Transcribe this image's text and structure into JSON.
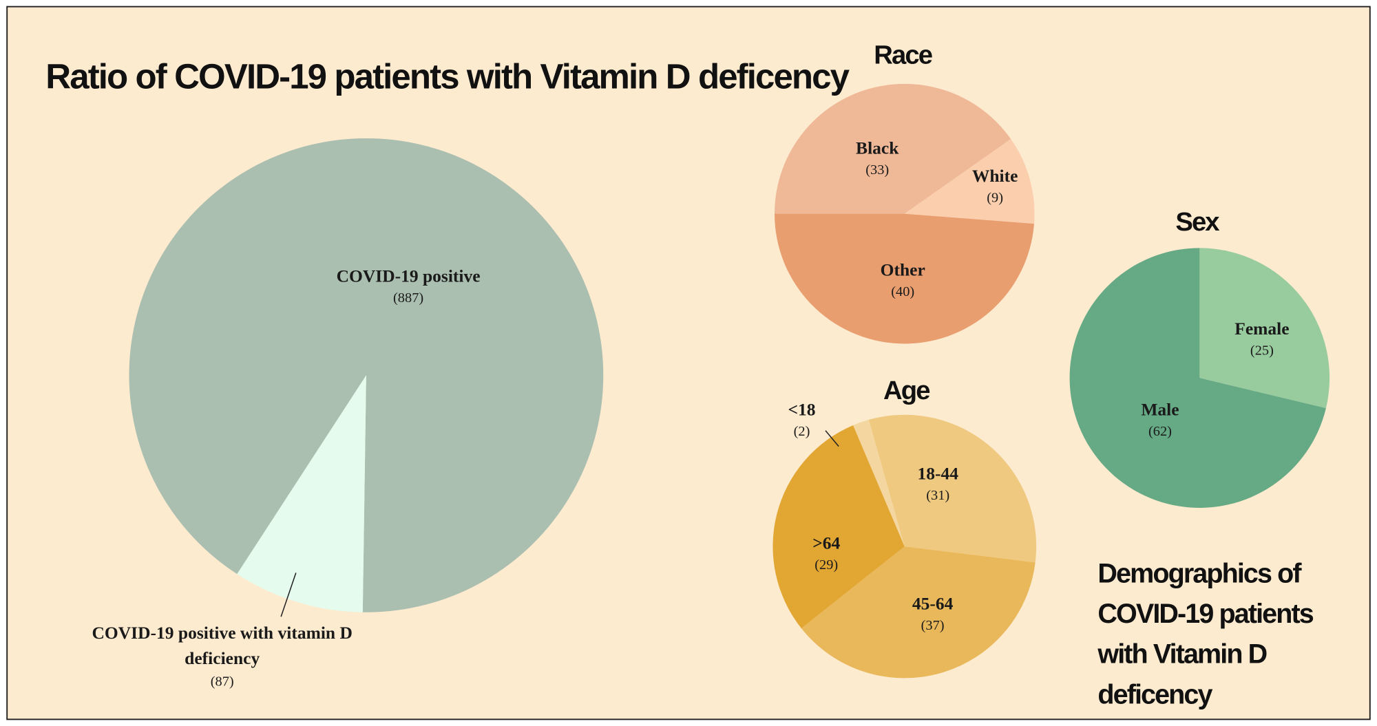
{
  "chart_data": [
    {
      "type": "pie",
      "title": "Ratio of COVID-19 patients with Vitamin D deficency",
      "categories": [
        "COVID-19 positive",
        "COVID-19 positive with vitamin D deficiency"
      ],
      "values": [
        887,
        87
      ],
      "value_labels": [
        "(887)",
        "(87)"
      ],
      "colors": [
        "#abbfb0",
        "#e5fbee"
      ]
    },
    {
      "type": "pie",
      "title": "Race",
      "categories": [
        "Black",
        "White",
        "Other"
      ],
      "values": [
        33,
        9,
        40
      ],
      "value_labels": [
        "(33)",
        "(9)",
        "(40)"
      ],
      "colors": [
        "#efb897",
        "#fbcfad",
        "#e99e70"
      ]
    },
    {
      "type": "pie",
      "title": "Age",
      "categories": [
        "<18",
        "18-44",
        "45-64",
        ">64"
      ],
      "values": [
        2,
        31,
        37,
        29
      ],
      "value_labels": [
        "(2)",
        "(31)",
        "(37)",
        "(29)"
      ],
      "colors": [
        "#f4d7a0",
        "#efc97f",
        "#e9b85a",
        "#e2a633"
      ]
    },
    {
      "type": "pie",
      "title": "Sex",
      "categories": [
        "Female",
        "Male"
      ],
      "values": [
        25,
        62
      ],
      "value_labels": [
        "(25)",
        "(62)"
      ],
      "colors": [
        "#98cc9f",
        "#66aa85"
      ]
    }
  ],
  "heading": "Demographics of COVID-19 patients with Vitamin D deficency"
}
